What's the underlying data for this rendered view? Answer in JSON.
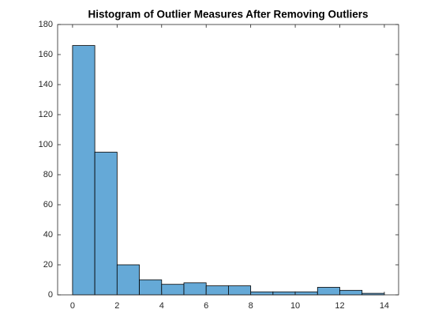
{
  "chart_data": {
    "type": "histogram",
    "title": "Histogram of Outlier Measures After Removing Outliers",
    "bins": [
      0,
      1,
      2,
      3,
      4,
      5,
      6,
      7,
      8,
      9,
      10,
      11,
      12,
      13,
      14
    ],
    "values": [
      166,
      95,
      20,
      10,
      7,
      8,
      6,
      6,
      2,
      2,
      2,
      5,
      3,
      1
    ],
    "color": "#65a9d7",
    "xlim": [
      -0.67,
      14.64
    ],
    "xticks": [
      0,
      2,
      4,
      6,
      8,
      10,
      12,
      14
    ],
    "ylim": [
      0,
      180
    ],
    "yticks": [
      0,
      20,
      40,
      60,
      80,
      100,
      120,
      140,
      160,
      180
    ]
  }
}
